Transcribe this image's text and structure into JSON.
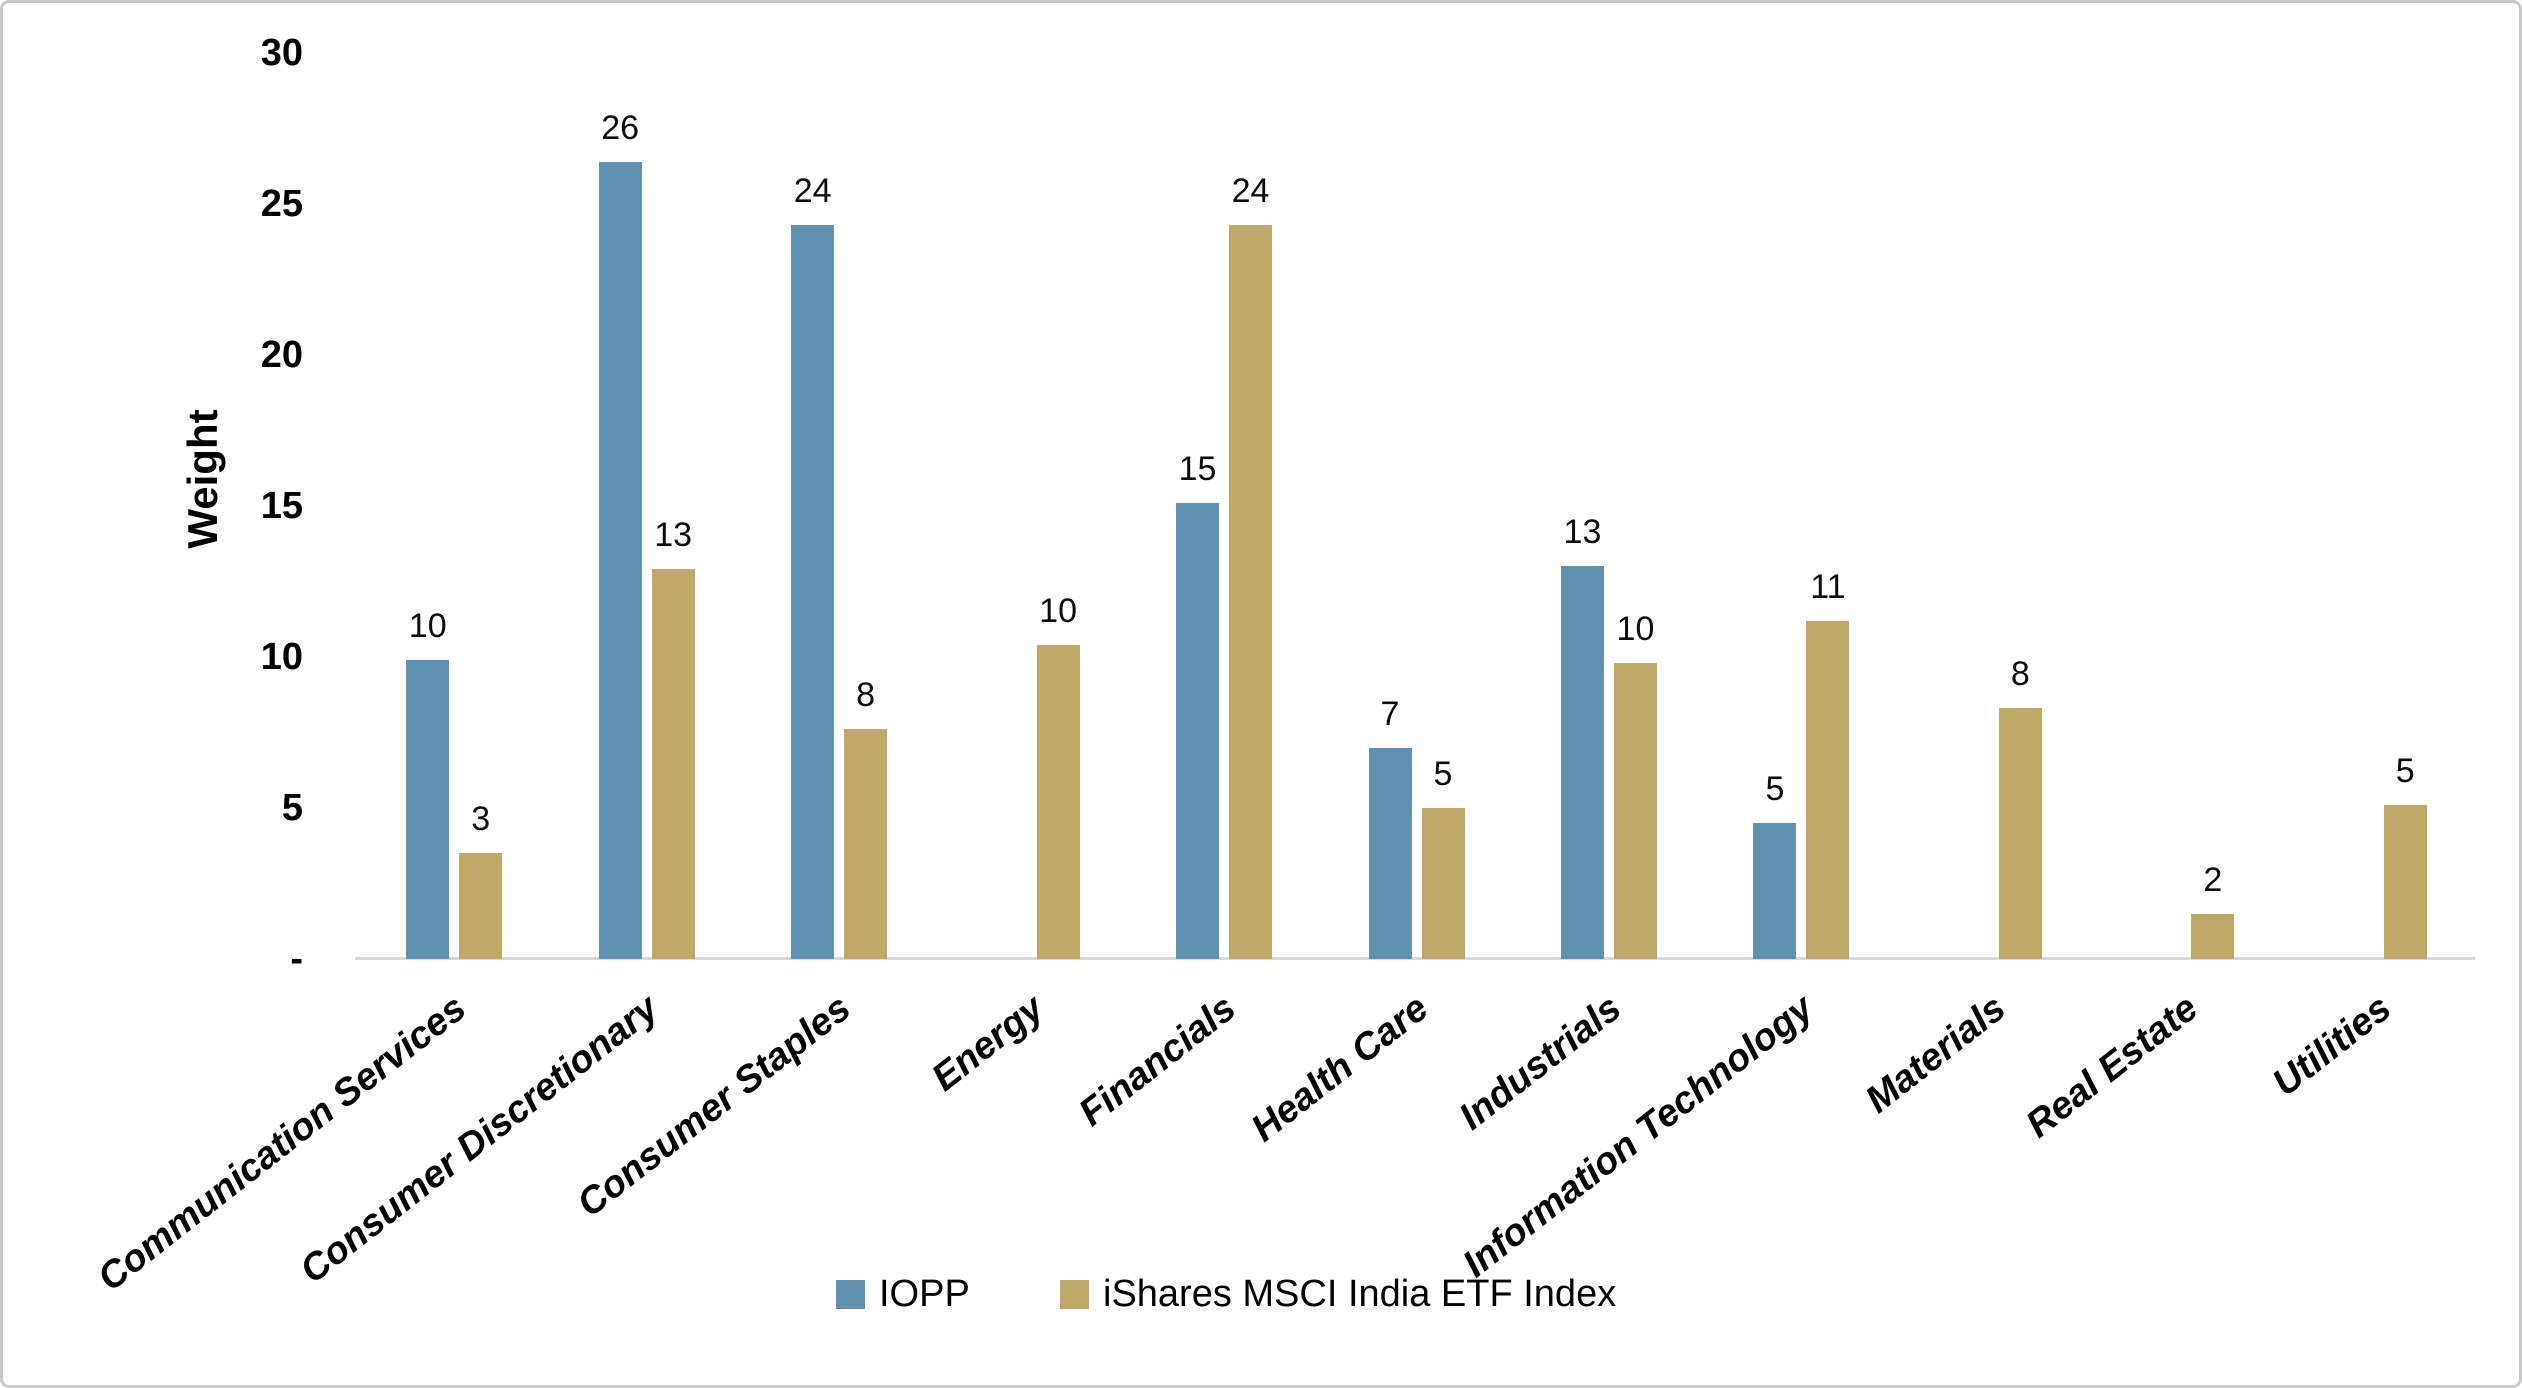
{
  "chart_data": {
    "type": "bar",
    "title": "",
    "xlabel": "",
    "ylabel": "Weight",
    "ylim": [
      0,
      30
    ],
    "grid": false,
    "legend_position": "bottom-center",
    "axis_line_color": "#d9d9d9",
    "yticks": [
      {
        "value": 30,
        "label": "30"
      },
      {
        "value": 25,
        "label": "25"
      },
      {
        "value": 20,
        "label": "20"
      },
      {
        "value": 15,
        "label": "15"
      },
      {
        "value": 10,
        "label": "10"
      },
      {
        "value": 5,
        "label": "5"
      },
      {
        "value": 0,
        "label": "-"
      }
    ],
    "categories": [
      "Communication Services",
      "Consumer Discretionary",
      "Consumer Staples",
      "Energy",
      "Financials",
      "Health Care",
      "Industrials",
      "Information Technology",
      "Materials",
      "Real Estate",
      "Utilities"
    ],
    "series": [
      {
        "name": "IOPP",
        "color": "#6191B2",
        "values": [
          10,
          26,
          24,
          null,
          15,
          7,
          13,
          5,
          null,
          null,
          null
        ],
        "values_precise": [
          9.9,
          26.4,
          24.3,
          null,
          15.1,
          7.0,
          13.0,
          4.5,
          null,
          null,
          null
        ],
        "data_labels": [
          "10",
          "26",
          "24",
          "",
          "15",
          "7",
          "13",
          "5",
          "",
          "",
          ""
        ]
      },
      {
        "name": "iShares MSCI India ETF Index",
        "color": "#C0A868",
        "values": [
          3,
          13,
          8,
          10,
          24,
          5,
          10,
          11,
          8,
          2,
          5
        ],
        "values_precise": [
          3.5,
          12.9,
          7.6,
          10.4,
          24.3,
          5.0,
          9.8,
          11.2,
          8.3,
          1.5,
          5.1
        ],
        "data_labels": [
          "3",
          "13",
          "8",
          "10",
          "24",
          "5",
          "10",
          "11",
          "8",
          "2",
          "5"
        ]
      }
    ]
  }
}
